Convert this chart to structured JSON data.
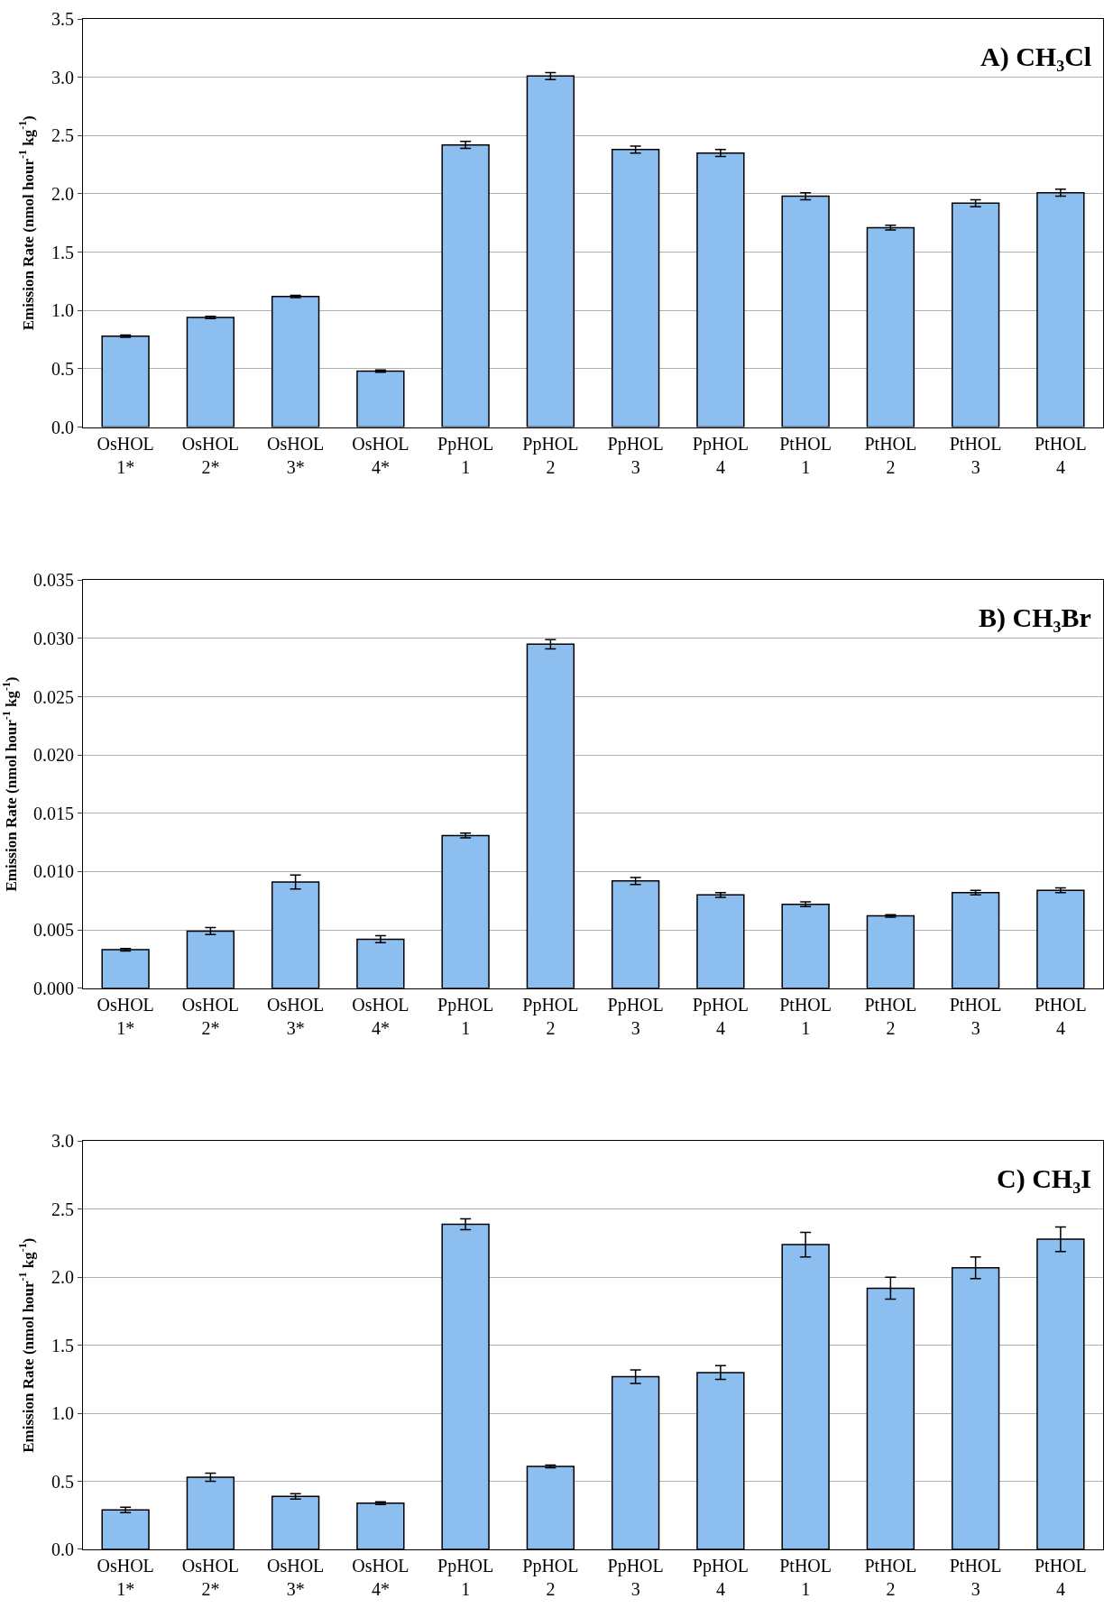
{
  "chart_data": [
    {
      "type": "bar",
      "title": "A) CH₃Cl",
      "ylabel": "Emission Rate (nmol hour$^{-1}$ kg$^{-1}$)",
      "categories": [
        "OsHOL\n1*",
        "OsHOL\n2*",
        "OsHOL\n3*",
        "OsHOL\n4*",
        "PpHOL\n1",
        "PpHOL\n2",
        "PpHOL\n3",
        "PpHOL\n4",
        "PtHOL\n1",
        "PtHOL\n2",
        "PtHOL\n3",
        "PtHOL\n4"
      ],
      "values": [
        0.78,
        0.94,
        1.12,
        0.48,
        2.42,
        3.01,
        2.38,
        2.35,
        1.98,
        1.71,
        1.92,
        2.01
      ],
      "errors": [
        0.01,
        0.01,
        0.01,
        0.01,
        0.03,
        0.03,
        0.03,
        0.03,
        0.03,
        0.02,
        0.03,
        0.03
      ],
      "color": "#8dbef0",
      "ylim": [
        0,
        3.5
      ],
      "yticks": [
        {
          "value": 0,
          "label": "0.0"
        },
        {
          "value": 0.5,
          "label": "0.5"
        },
        {
          "value": 1,
          "label": "1.0"
        },
        {
          "value": 1.5,
          "label": "1.5"
        },
        {
          "value": 2,
          "label": "2.0"
        },
        {
          "value": 2.5,
          "label": "2.5"
        },
        {
          "value": 3,
          "label": "3.0"
        },
        {
          "value": 3.5,
          "label": "3.5"
        }
      ],
      "grid": "y"
    },
    {
      "type": "bar",
      "title": "B) CH₃Br",
      "ylabel": "Emission Rate (nmol hour$^{-1}$ kg$^{-1}$)",
      "categories": [
        "OsHOL\n1*",
        "OsHOL\n2*",
        "OsHOL\n3*",
        "OsHOL\n4*",
        "PpHOL\n1",
        "PpHOL\n2",
        "PpHOL\n3",
        "PpHOL\n4",
        "PtHOL\n1",
        "PtHOL\n2",
        "PtHOL\n3",
        "PtHOL\n4"
      ],
      "values": [
        0.0033,
        0.0049,
        0.0091,
        0.0042,
        0.0131,
        0.0295,
        0.0092,
        0.008,
        0.0072,
        0.0062,
        0.0082,
        0.0084
      ],
      "errors": [
        0.0001,
        0.0003,
        0.0006,
        0.0003,
        0.0002,
        0.0004,
        0.0003,
        0.0002,
        0.0002,
        0.0001,
        0.0002,
        0.0002
      ],
      "color": "#8dbef0",
      "ylim": [
        0,
        0.035
      ],
      "yticks": [
        {
          "value": 0,
          "label": "0.000"
        },
        {
          "value": 0.005,
          "label": "0.005"
        },
        {
          "value": 0.01,
          "label": "0.010"
        },
        {
          "value": 0.015,
          "label": "0.015"
        },
        {
          "value": 0.02,
          "label": "0.020"
        },
        {
          "value": 0.025,
          "label": "0.025"
        },
        {
          "value": 0.03,
          "label": "0.030"
        },
        {
          "value": 0.035,
          "label": "0.035"
        }
      ],
      "grid": "y"
    },
    {
      "type": "bar",
      "title": "C) CH₃I",
      "ylabel": "Emission Rate (nmol hour$^{-1}$ kg$^{-1}$)",
      "categories": [
        "OsHOL\n1*",
        "OsHOL\n2*",
        "OsHOL\n3*",
        "OsHOL\n4*",
        "PpHOL\n1",
        "PpHOL\n2",
        "PpHOL\n3",
        "PpHOL\n4",
        "PtHOL\n1",
        "PtHOL\n2",
        "PtHOL\n3",
        "PtHOL\n4"
      ],
      "values": [
        0.29,
        0.53,
        0.39,
        0.34,
        2.39,
        0.61,
        1.27,
        1.3,
        2.24,
        1.92,
        2.07,
        2.28
      ],
      "errors": [
        0.02,
        0.03,
        0.02,
        0.01,
        0.04,
        0.01,
        0.05,
        0.05,
        0.09,
        0.08,
        0.08,
        0.09
      ],
      "color": "#8dbef0",
      "ylim": [
        0,
        3.0
      ],
      "yticks": [
        {
          "value": 0,
          "label": "0.0"
        },
        {
          "value": 0.5,
          "label": "0.5"
        },
        {
          "value": 1,
          "label": "1.0"
        },
        {
          "value": 1.5,
          "label": "1.5"
        },
        {
          "value": 2,
          "label": "2.0"
        },
        {
          "value": 2.5,
          "label": "2.5"
        },
        {
          "value": 3,
          "label": "3.0"
        }
      ],
      "grid": "y"
    }
  ]
}
